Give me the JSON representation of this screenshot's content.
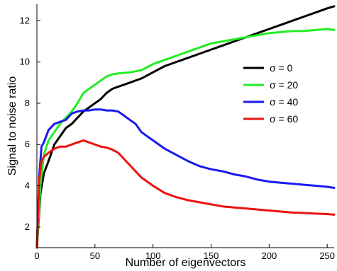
{
  "chart_data": {
    "type": "line",
    "xlabel": "Number of eigenvectors",
    "ylabel": "Signal to noise ratio",
    "xlim": [
      0,
      256
    ],
    "ylim": [
      1,
      12.8
    ],
    "xticks": [
      0,
      50,
      100,
      150,
      200,
      250
    ],
    "yticks": [
      2,
      4,
      6,
      8,
      10,
      12
    ],
    "grid": false,
    "legend_position": "right",
    "series": [
      {
        "name": "σ = 0",
        "color": "#000000",
        "x": [
          0,
          3,
          6,
          10,
          15,
          20,
          25,
          30,
          35,
          40,
          45,
          50,
          55,
          60,
          65,
          70,
          80,
          90,
          100,
          110,
          120,
          130,
          140,
          150,
          160,
          170,
          180,
          190,
          200,
          210,
          220,
          230,
          240,
          250,
          256
        ],
        "y": [
          1.0,
          3.6,
          4.6,
          5.2,
          6.0,
          6.4,
          6.8,
          7.0,
          7.3,
          7.6,
          7.8,
          8.0,
          8.2,
          8.5,
          8.7,
          8.8,
          9.0,
          9.2,
          9.5,
          9.8,
          10.0,
          10.2,
          10.4,
          10.6,
          10.8,
          11.0,
          11.2,
          11.4,
          11.6,
          11.8,
          12.0,
          12.2,
          12.4,
          12.6,
          12.7
        ]
      },
      {
        "name": "σ = 20",
        "color": "#22ee22",
        "x": [
          0,
          3,
          6,
          10,
          15,
          20,
          25,
          30,
          35,
          40,
          45,
          50,
          55,
          60,
          65,
          70,
          80,
          90,
          100,
          110,
          120,
          130,
          140,
          150,
          160,
          170,
          180,
          190,
          200,
          210,
          220,
          230,
          240,
          250,
          256
        ],
        "y": [
          1.0,
          4.0,
          5.5,
          6.2,
          6.6,
          7.0,
          7.3,
          7.6,
          8.0,
          8.5,
          8.7,
          8.9,
          9.1,
          9.3,
          9.4,
          9.45,
          9.5,
          9.6,
          9.9,
          10.1,
          10.3,
          10.5,
          10.7,
          10.9,
          11.0,
          11.1,
          11.2,
          11.3,
          11.4,
          11.45,
          11.5,
          11.5,
          11.55,
          11.6,
          11.55
        ]
      },
      {
        "name": "σ = 40",
        "color": "#1a1aee",
        "x": [
          0,
          2,
          4,
          6,
          10,
          15,
          20,
          25,
          30,
          35,
          40,
          45,
          50,
          55,
          60,
          65,
          70,
          75,
          80,
          85,
          90,
          95,
          100,
          110,
          120,
          130,
          140,
          150,
          160,
          170,
          180,
          190,
          200,
          210,
          220,
          230,
          240,
          250,
          256
        ],
        "y": [
          1.0,
          4.5,
          5.9,
          6.1,
          6.7,
          7.0,
          7.1,
          7.2,
          7.5,
          7.6,
          7.65,
          7.65,
          7.7,
          7.7,
          7.65,
          7.65,
          7.6,
          7.4,
          7.2,
          7.0,
          6.6,
          6.4,
          6.2,
          5.8,
          5.5,
          5.2,
          4.95,
          4.8,
          4.7,
          4.55,
          4.45,
          4.3,
          4.2,
          4.15,
          4.1,
          4.05,
          4.0,
          3.95,
          3.9
        ]
      },
      {
        "name": "σ = 60",
        "color": "#ee1111",
        "x": [
          0,
          2,
          4,
          6,
          10,
          15,
          20,
          25,
          30,
          35,
          40,
          45,
          50,
          55,
          60,
          65,
          70,
          75,
          80,
          90,
          100,
          110,
          120,
          130,
          140,
          150,
          160,
          170,
          180,
          190,
          200,
          210,
          220,
          230,
          240,
          250,
          256
        ],
        "y": [
          1.0,
          4.3,
          5.2,
          5.4,
          5.6,
          5.8,
          5.9,
          5.9,
          6.0,
          6.1,
          6.2,
          6.1,
          6.0,
          5.9,
          5.85,
          5.75,
          5.6,
          5.3,
          5.0,
          4.4,
          4.0,
          3.65,
          3.45,
          3.3,
          3.2,
          3.1,
          3.0,
          2.95,
          2.9,
          2.85,
          2.8,
          2.75,
          2.7,
          2.68,
          2.65,
          2.63,
          2.6
        ]
      }
    ]
  }
}
